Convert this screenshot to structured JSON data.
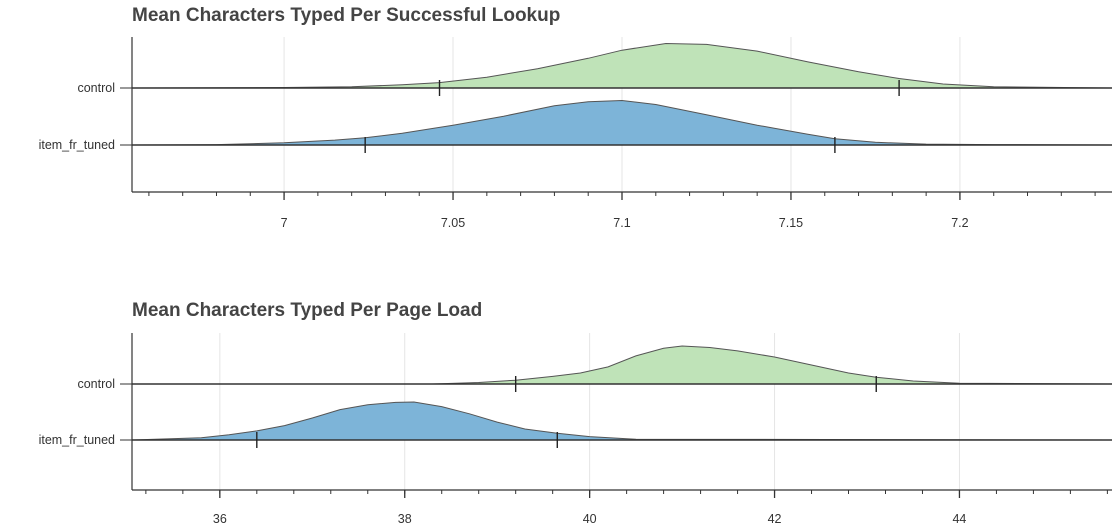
{
  "colors": {
    "control": "#bfe3b8",
    "item_fr_tuned": "#7db4d8",
    "outline": "#555555",
    "grid": "#e5e5e5",
    "axis": "#333333"
  },
  "chart_data": [
    {
      "type": "area",
      "subtype": "ridgeline-density",
      "title": "Mean Characters Typed Per Successful Lookup",
      "xlabel": "",
      "ylabel": "",
      "xlim": [
        6.955,
        7.245
      ],
      "x_ticks": [
        7,
        7.05,
        7.1,
        7.15,
        7.2
      ],
      "x_tick_labels": [
        "7",
        "7.05",
        "7.1",
        "7.15",
        "7.2"
      ],
      "x_minor_step": 0.01,
      "grid": true,
      "categories": [
        "control",
        "item_fr_tuned"
      ],
      "series": [
        {
          "name": "control",
          "color": "#bfe3b8",
          "interval": [
            7.046,
            7.182
          ],
          "x": [
            6.955,
            7.0,
            7.02,
            7.035,
            7.046,
            7.06,
            7.075,
            7.09,
            7.1,
            7.113,
            7.125,
            7.14,
            7.155,
            7.17,
            7.182,
            7.195,
            7.21,
            7.245
          ],
          "density": [
            0.0,
            0.01,
            0.03,
            0.07,
            0.12,
            0.24,
            0.43,
            0.66,
            0.84,
            0.99,
            0.97,
            0.82,
            0.58,
            0.36,
            0.21,
            0.09,
            0.03,
            0.0
          ]
        },
        {
          "name": "item_fr_tuned",
          "color": "#7db4d8",
          "interval": [
            7.024,
            7.163
          ],
          "x": [
            6.955,
            6.98,
            7.0,
            7.015,
            7.024,
            7.035,
            7.05,
            7.065,
            7.08,
            7.09,
            7.1,
            7.11,
            7.125,
            7.14,
            7.155,
            7.163,
            7.175,
            7.19,
            7.21,
            7.245
          ],
          "density": [
            0.0,
            0.01,
            0.05,
            0.11,
            0.16,
            0.26,
            0.44,
            0.64,
            0.87,
            0.96,
            0.99,
            0.9,
            0.67,
            0.44,
            0.24,
            0.14,
            0.06,
            0.02,
            0.01,
            0.0
          ]
        }
      ]
    },
    {
      "type": "area",
      "subtype": "ridgeline-density",
      "title": "Mean Characters Typed Per Page Load",
      "xlabel": "",
      "ylabel": "",
      "xlim": [
        35.05,
        45.65
      ],
      "x_ticks": [
        36,
        38,
        40,
        42,
        44
      ],
      "x_tick_labels": [
        "36",
        "38",
        "40",
        "42",
        "44"
      ],
      "x_minor_step": 0.4,
      "grid": true,
      "categories": [
        "control",
        "item_fr_tuned"
      ],
      "series": [
        {
          "name": "control",
          "color": "#bfe3b8",
          "interval": [
            39.2,
            43.1
          ],
          "x": [
            35.05,
            38.3,
            38.8,
            39.2,
            39.6,
            39.9,
            40.2,
            40.5,
            40.8,
            41.0,
            41.3,
            41.6,
            42.0,
            42.4,
            42.8,
            43.1,
            43.5,
            44.0,
            45.65
          ],
          "density": [
            0.0,
            0.0,
            0.04,
            0.1,
            0.2,
            0.29,
            0.45,
            0.74,
            0.94,
            1.0,
            0.96,
            0.87,
            0.71,
            0.5,
            0.29,
            0.18,
            0.08,
            0.02,
            0.0
          ]
        },
        {
          "name": "item_fr_tuned",
          "color": "#7db4d8",
          "interval": [
            36.4,
            39.65
          ],
          "x": [
            35.05,
            35.8,
            36.1,
            36.4,
            36.7,
            37.0,
            37.3,
            37.6,
            37.9,
            38.1,
            38.4,
            38.7,
            39.0,
            39.3,
            39.65,
            40.0,
            40.5,
            45.65
          ],
          "density": [
            0.0,
            0.06,
            0.14,
            0.24,
            0.38,
            0.58,
            0.8,
            0.93,
            0.99,
            1.0,
            0.88,
            0.69,
            0.47,
            0.29,
            0.18,
            0.09,
            0.02,
            0.0
          ]
        }
      ]
    }
  ]
}
